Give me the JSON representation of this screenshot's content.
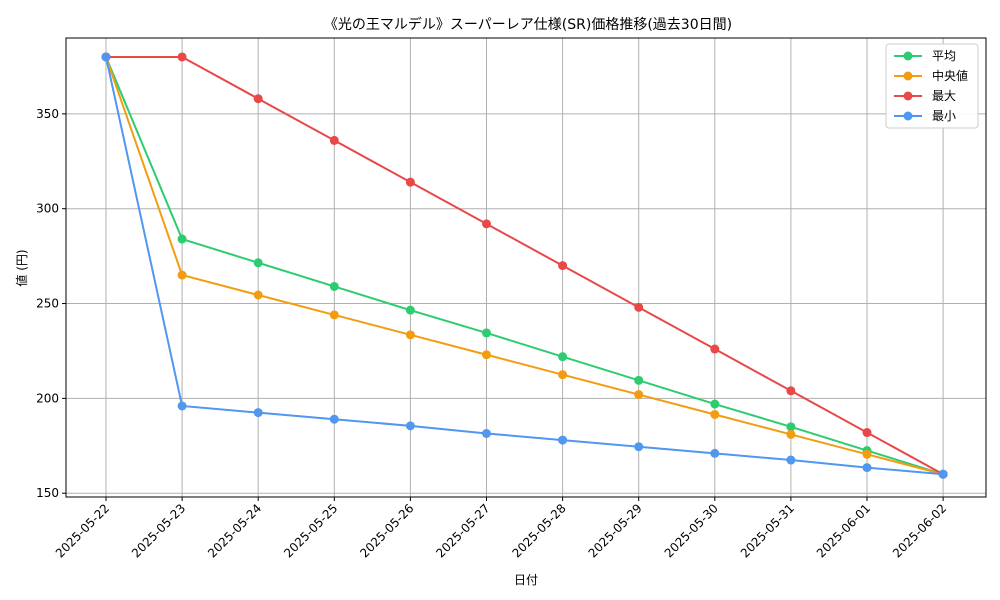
{
  "chart_data": {
    "type": "line",
    "title": "《光の王マルデル》スーパーレア仕様(SR)価格推移(過去30日間)",
    "xlabel": "日付",
    "ylabel": "値 (円)",
    "categories": [
      "2025-05-22",
      "2025-05-23",
      "2025-05-24",
      "2025-05-25",
      "2025-05-26",
      "2025-05-27",
      "2025-05-28",
      "2025-05-29",
      "2025-05-30",
      "2025-05-31",
      "2025-06-01",
      "2025-06-02"
    ],
    "ylim": [
      148,
      390
    ],
    "yticks": [
      150,
      200,
      250,
      300,
      350
    ],
    "grid": true,
    "legend_position": "top-right",
    "series": [
      {
        "name": "平均",
        "color": "#2ecc71",
        "values": [
          380,
          284,
          271.5,
          259,
          246.5,
          234.5,
          222,
          209.5,
          197,
          185,
          172.5,
          160
        ]
      },
      {
        "name": "中央値",
        "color": "#f39c12",
        "values": [
          380,
          265,
          254.5,
          244,
          233.5,
          223,
          212.5,
          202,
          191.5,
          181,
          170.5,
          160
        ]
      },
      {
        "name": "最大",
        "color": "#e84848",
        "values": [
          380,
          380,
          358,
          336,
          314,
          292,
          270,
          248,
          226,
          204,
          182,
          160
        ]
      },
      {
        "name": "最小",
        "color": "#4f97ef",
        "values": [
          380,
          196,
          192.5,
          189,
          185.5,
          181.5,
          178,
          174.5,
          171,
          167.5,
          163.5,
          160
        ]
      }
    ]
  }
}
